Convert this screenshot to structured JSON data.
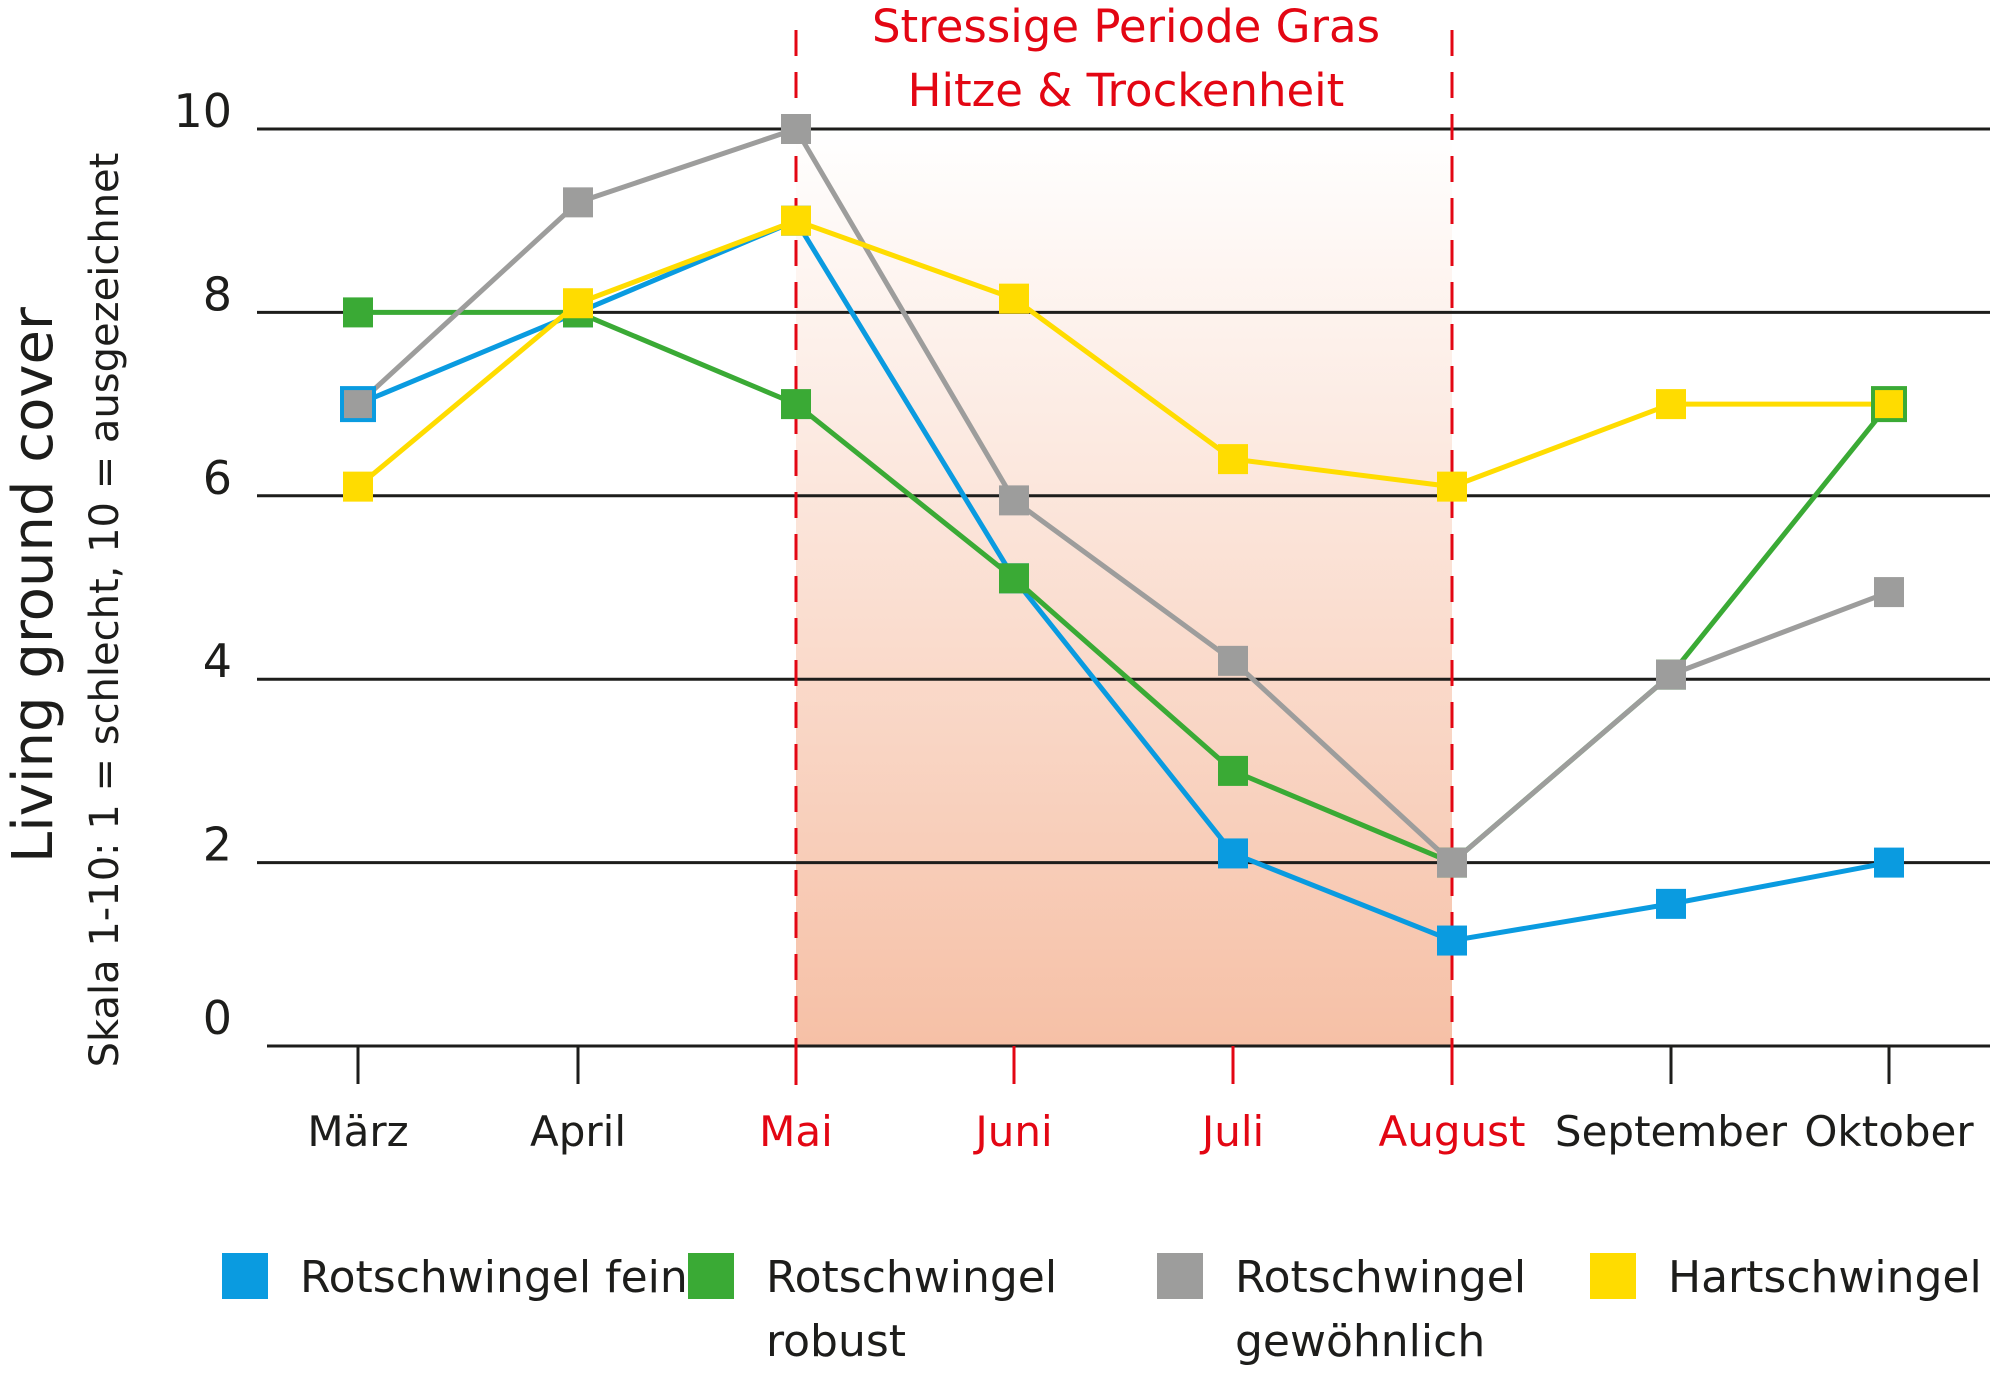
{
  "chart_data": {
    "type": "line",
    "title": [
      "Stressige Periode Gras",
      "Hitze & Trockenheit"
    ],
    "ylabel": "Living ground cover",
    "ylabel_sub": "Skala 1-10: 1 = schlecht, 10 = ausgezeichnet",
    "xlabel": "",
    "ylim": [
      0,
      10
    ],
    "yticks": [
      "0",
      "2",
      "4",
      "6",
      "8",
      "10"
    ],
    "grid": true,
    "categories": [
      "März",
      "April",
      "Mai",
      "Juni",
      "Juli",
      "August",
      "September",
      "Oktober"
    ],
    "highlight_range": {
      "from": "Mai",
      "to": "August",
      "label_color": "#e30613",
      "fill_color": "#f6c0a6"
    },
    "legend_position": "bottom",
    "series": [
      {
        "name": "Rotschwingel fein",
        "color": "#0a9be0",
        "values": [
          7,
          8,
          9,
          5.1,
          2.1,
          1.15,
          1.55,
          2
        ]
      },
      {
        "name": "Rotschwingel robust",
        "color": "#3aaa35",
        "values": [
          8,
          8,
          7,
          5.1,
          3,
          2,
          4.05,
          7
        ]
      },
      {
        "name": "Rotschwingel gewöhnlich",
        "color": "#9d9d9c",
        "values": [
          7,
          9.2,
          10,
          5.95,
          4.2,
          2,
          4.05,
          4.95
        ]
      },
      {
        "name": "Hartschwingel",
        "color": "#ffdc00",
        "values": [
          6.1,
          8.1,
          9,
          8.15,
          6.4,
          6.1,
          7,
          7
        ]
      }
    ],
    "legend_labels": [
      [
        "Rotschwingel fein"
      ],
      [
        "Rotschwingel",
        "robust"
      ],
      [
        "Rotschwingel",
        "gewöhnlich"
      ],
      [
        "Hartschwingel"
      ]
    ]
  }
}
